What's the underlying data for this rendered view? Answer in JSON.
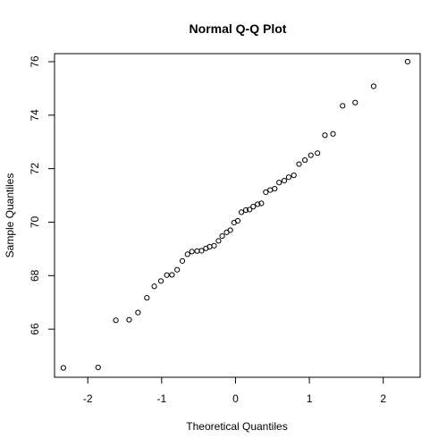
{
  "chart_data": {
    "type": "scatter",
    "title": "Normal Q-Q Plot",
    "xlabel": "Theoretical Quantiles",
    "ylabel": "Sample Quantiles",
    "xlim": [
      -2.45,
      2.5
    ],
    "ylim": [
      64.2,
      76.3
    ],
    "x_ticks": [
      -2,
      -1,
      0,
      1,
      2
    ],
    "x_tick_labels": [
      "-2",
      "-1",
      "0",
      "1",
      "2"
    ],
    "y_ticks": [
      66,
      68,
      70,
      72,
      74,
      76
    ],
    "y_tick_labels": [
      "66",
      "68",
      "70",
      "72",
      "74",
      "76"
    ],
    "grid": false,
    "marker": "open-circle",
    "series": [
      {
        "points": [
          {
            "x": -2.33,
            "y": 64.55
          },
          {
            "x": -1.86,
            "y": 64.57
          },
          {
            "x": -1.62,
            "y": 66.33
          },
          {
            "x": -1.44,
            "y": 66.35
          },
          {
            "x": -1.32,
            "y": 66.62
          },
          {
            "x": -1.2,
            "y": 67.17
          },
          {
            "x": -1.1,
            "y": 67.6
          },
          {
            "x": -1.01,
            "y": 67.8
          },
          {
            "x": -0.93,
            "y": 68.02
          },
          {
            "x": -0.86,
            "y": 68.03
          },
          {
            "x": -0.79,
            "y": 68.22
          },
          {
            "x": -0.72,
            "y": 68.55
          },
          {
            "x": -0.65,
            "y": 68.8
          },
          {
            "x": -0.59,
            "y": 68.9
          },
          {
            "x": -0.52,
            "y": 68.92
          },
          {
            "x": -0.46,
            "y": 68.93
          },
          {
            "x": -0.4,
            "y": 69.02
          },
          {
            "x": -0.35,
            "y": 69.08
          },
          {
            "x": -0.29,
            "y": 69.12
          },
          {
            "x": -0.23,
            "y": 69.3
          },
          {
            "x": -0.18,
            "y": 69.48
          },
          {
            "x": -0.12,
            "y": 69.62
          },
          {
            "x": -0.07,
            "y": 69.7
          },
          {
            "x": -0.02,
            "y": 69.98
          },
          {
            "x": 0.03,
            "y": 70.05
          },
          {
            "x": 0.08,
            "y": 70.37
          },
          {
            "x": 0.14,
            "y": 70.45
          },
          {
            "x": 0.19,
            "y": 70.47
          },
          {
            "x": 0.24,
            "y": 70.58
          },
          {
            "x": 0.3,
            "y": 70.67
          },
          {
            "x": 0.35,
            "y": 70.7
          },
          {
            "x": 0.41,
            "y": 71.12
          },
          {
            "x": 0.47,
            "y": 71.2
          },
          {
            "x": 0.53,
            "y": 71.25
          },
          {
            "x": 0.59,
            "y": 71.48
          },
          {
            "x": 0.66,
            "y": 71.55
          },
          {
            "x": 0.72,
            "y": 71.68
          },
          {
            "x": 0.79,
            "y": 71.75
          },
          {
            "x": 0.86,
            "y": 72.17
          },
          {
            "x": 0.94,
            "y": 72.32
          },
          {
            "x": 1.02,
            "y": 72.5
          },
          {
            "x": 1.11,
            "y": 72.58
          },
          {
            "x": 1.21,
            "y": 73.25
          },
          {
            "x": 1.32,
            "y": 73.3
          },
          {
            "x": 1.45,
            "y": 74.35
          },
          {
            "x": 1.62,
            "y": 74.47
          },
          {
            "x": 1.87,
            "y": 75.08
          },
          {
            "x": 2.33,
            "y": 76.0
          }
        ]
      }
    ]
  }
}
